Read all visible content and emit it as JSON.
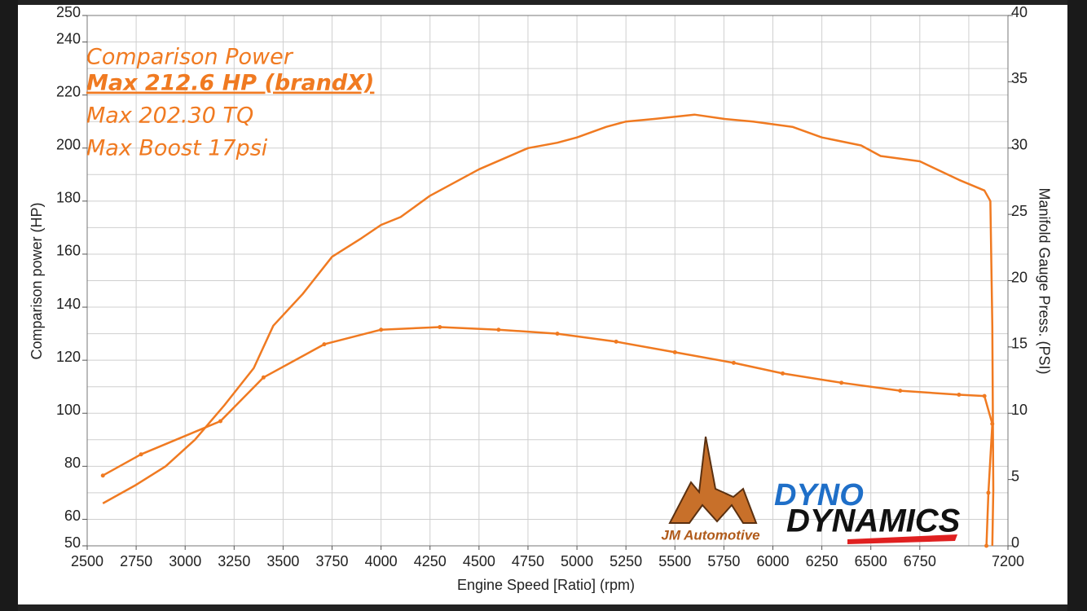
{
  "chart_data": {
    "type": "line",
    "x_label": "Engine Speed [Ratio] (rpm)",
    "y_label": "Comparison power (HP)",
    "y2_label": "Manifold Gauge Press. (PSI)",
    "annotations": [
      "Comparison Power",
      "Max 212.6 HP (brandX)",
      "Max 202.30 TQ",
      "Max Boost 17psi"
    ],
    "logos": [
      "JM Automotive",
      "DYNO",
      "DYNAMICS"
    ],
    "xlim": [
      2500,
      7200
    ],
    "xticks": [
      2500,
      2750,
      3000,
      3250,
      3500,
      3750,
      4000,
      4250,
      4500,
      4750,
      5000,
      5250,
      5500,
      5750,
      6000,
      6250,
      6500,
      6750,
      7200
    ],
    "xgrid": [
      2750,
      3000,
      3250,
      3500,
      3750,
      4000,
      4250,
      4500,
      4750,
      5000,
      5250,
      5500,
      5750,
      6000,
      6250,
      6500,
      6750,
      7000
    ],
    "ylim": [
      50,
      250
    ],
    "yticks": [
      50,
      60,
      80,
      100,
      120,
      140,
      160,
      180,
      200,
      220,
      240,
      250
    ],
    "ygrid": [
      60,
      70,
      80,
      90,
      100,
      110,
      120,
      130,
      140,
      150,
      160,
      170,
      180,
      190,
      200,
      210,
      220,
      230,
      240
    ],
    "y2lim": [
      0,
      40
    ],
    "y2ticks": [
      0,
      5,
      10,
      15,
      20,
      25,
      30,
      35,
      40
    ],
    "grid": true,
    "series": [
      {
        "name": "Comparison Power",
        "color": "#f07a21",
        "markers": false,
        "x": [
          2580,
          2750,
          2900,
          3050,
          3200,
          3350,
          3450,
          3600,
          3750,
          3900,
          4000,
          4100,
          4250,
          4400,
          4500,
          4750,
          4900,
          5000,
          5150,
          5250,
          5400,
          5600,
          5750,
          5900,
          6100,
          6250,
          6450,
          6550,
          6750,
          6950,
          7080,
          7110,
          7120,
          7125,
          7120
        ],
        "values": [
          66,
          73,
          80,
          90,
          103,
          117,
          133,
          145,
          159,
          166,
          171,
          174,
          182,
          188,
          192,
          200,
          202,
          204,
          208,
          210,
          211,
          212.6,
          211,
          210,
          208,
          204,
          201,
          197,
          195,
          188,
          184,
          180,
          133,
          71,
          50
        ]
      },
      {
        "name": "Max Boost 17psi",
        "color": "#f07a21",
        "markers": true,
        "axis": "y2",
        "x": [
          2580,
          2775,
          3180,
          3400,
          3710,
          4000,
          4300,
          4600,
          4900,
          5200,
          5500,
          5800,
          6050,
          6350,
          6650,
          6950,
          7080,
          7120,
          7100,
          7090
        ],
        "values": [
          5.3,
          6.9,
          9.4,
          12.7,
          15.2,
          16.3,
          16.5,
          16.3,
          16.0,
          15.4,
          14.6,
          13.8,
          13.0,
          12.3,
          11.7,
          11.4,
          11.3,
          9.2,
          4.0,
          0
        ]
      }
    ]
  }
}
